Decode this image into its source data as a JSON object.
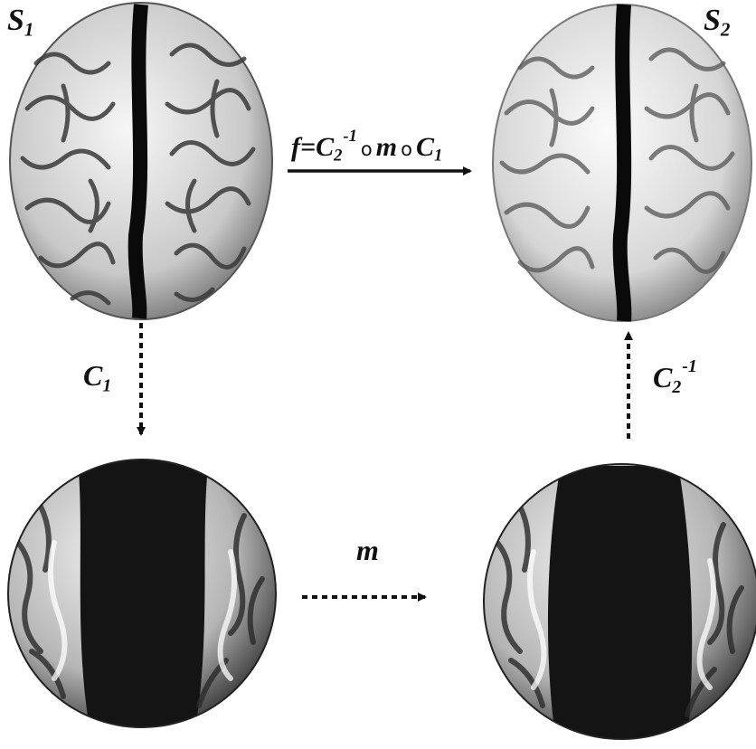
{
  "labels": {
    "s1": {
      "base": "S",
      "sub": "1"
    },
    "s2": {
      "base": "S",
      "sub": "2"
    },
    "c1": {
      "base": "C",
      "sub": "1"
    },
    "c2inv": {
      "base": "C",
      "sub": "2",
      "sup": "-1"
    },
    "m": "m",
    "composition": {
      "f": "f",
      "eq": "=",
      "c2": "C",
      "c2_sub": "2",
      "c2_sup": "-1",
      "op1": "o",
      "m": "m",
      "op2": "o",
      "c1": "C",
      "c1_sub": "1"
    }
  },
  "colors": {
    "ink": "#111111",
    "background": "#ffffff",
    "cortex_light": "#f2f2f2",
    "cortex_dark": "#1a1a1a"
  }
}
